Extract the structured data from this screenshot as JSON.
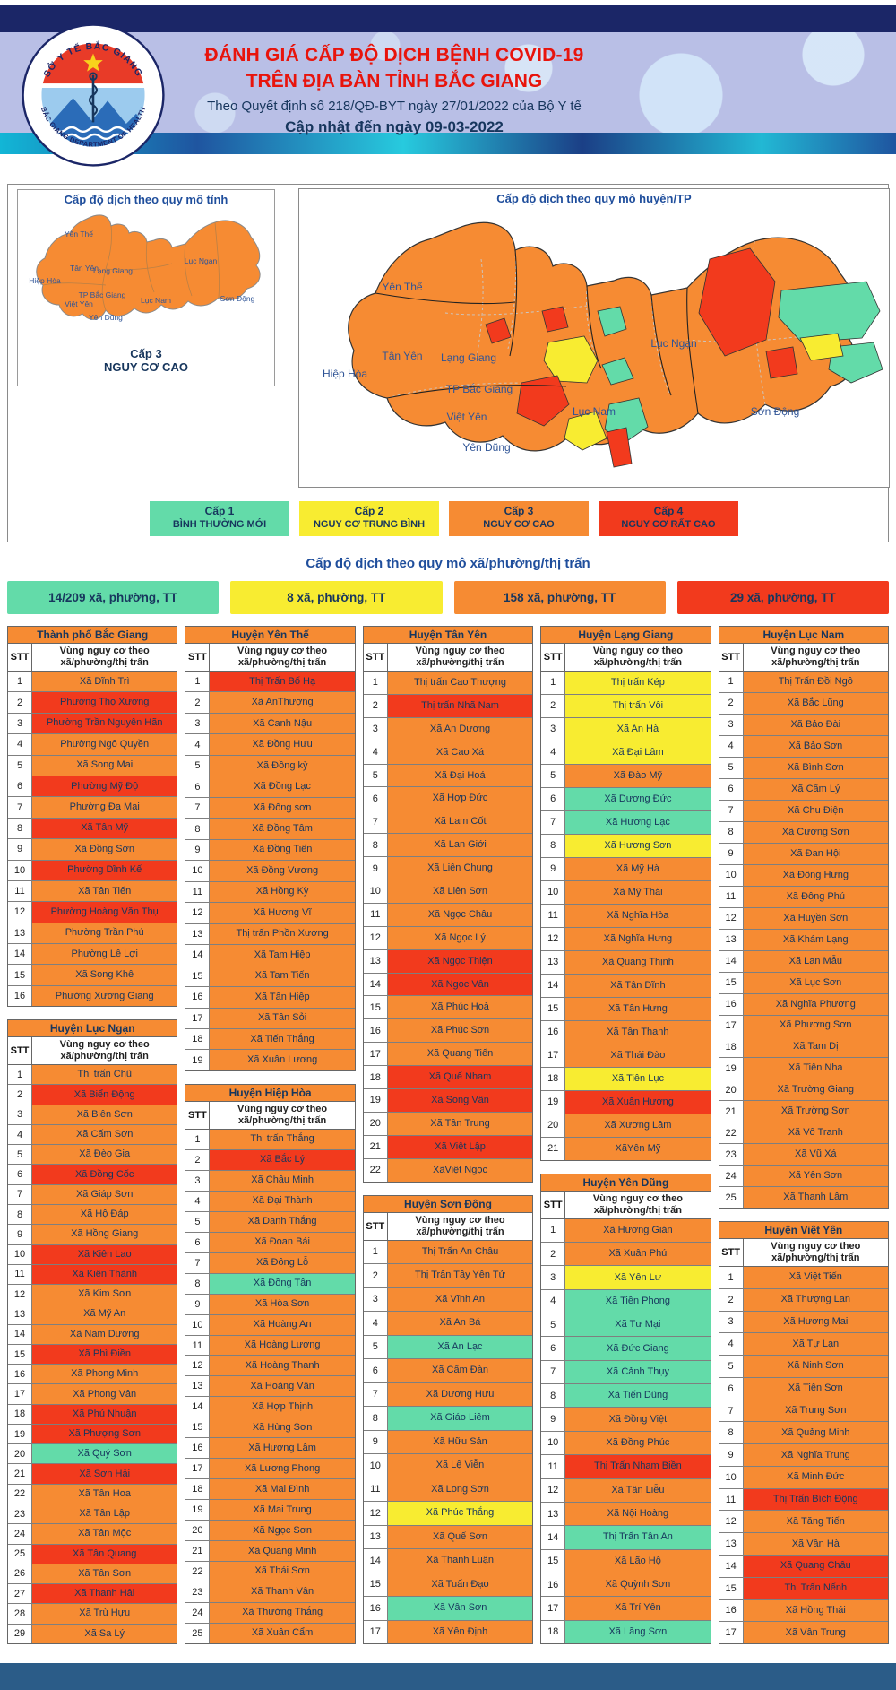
{
  "header": {
    "title1": "ĐÁNH GIÁ CẤP ĐỘ DỊCH BỆNH COVID-19",
    "title2": "TRÊN ĐỊA BÀN TỈNH BẮC GIANG",
    "subtitle": "Theo Quyết định số 218/QĐ-BYT ngày 27/01/2022 của Bộ Y tế",
    "updated": "Cập nhật đến ngày 09-03-2022",
    "logo_ring_top": "SỞ Y TẾ BẮC GIANG",
    "logo_ring_bottom": "BẮC GIANG DEPARTMENT OF HEALTH"
  },
  "maps": {
    "province": {
      "title": "Cấp độ dịch theo quy mô tỉnh",
      "caption_line1": "Cấp 3",
      "caption_line2": "NGUY CƠ CAO",
      "labels": [
        "Yên Thế",
        "Tân Yên",
        "Lạng Giang",
        "Lục Ngạn",
        "Hiệp Hòa",
        "TP Bắc Giang",
        "Việt Yên",
        "Lục Nam",
        "Sơn Động",
        "Yên Dũng"
      ]
    },
    "district": {
      "title": "Cấp độ dịch theo quy mô huyện/TP",
      "labels": [
        "Yên Thế",
        "Tân Yên",
        "Lạng Giang",
        "Lục Ngạn",
        "Hiệp Hòa",
        "TP Bắc Giang",
        "Việt Yên",
        "Lục Nam",
        "Sơn Động",
        "Yên Dũng"
      ]
    }
  },
  "legend": {
    "levels": [
      {
        "name": "Cấp 1",
        "desc": "BÌNH THƯỜNG MỚI",
        "level": 1
      },
      {
        "name": "Cấp 2",
        "desc": "NGUY CƠ TRUNG BÌNH",
        "level": 2
      },
      {
        "name": "Cấp 3",
        "desc": "NGUY CƠ CAO",
        "level": 3
      },
      {
        "name": "Cấp 4",
        "desc": "NGUY CƠ RẤT CAO",
        "level": 4
      }
    ]
  },
  "level_colors": {
    "1": "#63DBA9",
    "2": "#F8EC31",
    "3": "#F68B33",
    "4": "#F23A1D"
  },
  "commune_section": {
    "title": "Cấp độ dịch theo quy mô xã/phường/thị trấn",
    "summary": [
      {
        "text": "14/209 xã, phường, TT",
        "level": 1
      },
      {
        "text": "8 xã, phường, TT",
        "level": 2
      },
      {
        "text": "158 xã, phường, TT",
        "level": 3
      },
      {
        "text": "29 xã, phường, TT",
        "level": 4
      }
    ]
  },
  "table_headers": {
    "stt": "STT",
    "risk": "Vùng nguy cơ theo xã/phường/thị trấn"
  },
  "columns": [
    [
      {
        "name": "Thành phố Bắc Giang",
        "rows": [
          [
            "Xã Dĩnh Trì",
            3
          ],
          [
            "Phường Thọ Xương",
            4
          ],
          [
            "Phường Trần Nguyên Hãn",
            4
          ],
          [
            "Phường Ngô Quyền",
            3
          ],
          [
            "Xã Song Mai",
            3
          ],
          [
            "Phường Mỹ Độ",
            4
          ],
          [
            "Phường Đa Mai",
            3
          ],
          [
            "Xã Tân Mỹ",
            4
          ],
          [
            "Xã Đồng Sơn",
            3
          ],
          [
            "Phường Dĩnh Kế",
            4
          ],
          [
            "Xã Tân Tiến",
            3
          ],
          [
            "Phường Hoàng Văn Thụ",
            4
          ],
          [
            "Phường Trần Phú",
            3
          ],
          [
            "Phường Lê Lợi",
            3
          ],
          [
            "Xã Song Khê",
            3
          ],
          [
            "Phường Xương Giang",
            3
          ]
        ]
      },
      {
        "name": "Huyện Lục Ngạn",
        "rows": [
          [
            "Thị trấn Chũ",
            3
          ],
          [
            "Xã Biển Động",
            4
          ],
          [
            "Xã Biên Sơn",
            3
          ],
          [
            "Xã Cấm Sơn",
            3
          ],
          [
            "Xã Đèo Gia",
            3
          ],
          [
            "Xã Đồng Cốc",
            4
          ],
          [
            "Xã Giáp Sơn",
            3
          ],
          [
            "Xã Hộ Đáp",
            3
          ],
          [
            "Xã Hồng Giang",
            3
          ],
          [
            "Xã Kiên Lao",
            4
          ],
          [
            "Xã Kiên Thành",
            4
          ],
          [
            "Xã Kim Sơn",
            3
          ],
          [
            "Xã Mỹ An",
            3
          ],
          [
            "Xã Nam Dương",
            3
          ],
          [
            "Xã Phì Điền",
            4
          ],
          [
            "Xã Phong Minh",
            3
          ],
          [
            "Xã Phong Vân",
            3
          ],
          [
            "Xã Phú Nhuận",
            4
          ],
          [
            "Xã Phượng Sơn",
            4
          ],
          [
            "Xã Quý Sơn",
            1
          ],
          [
            "Xã Sơn Hải",
            4
          ],
          [
            "Xã Tân Hoa",
            3
          ],
          [
            "Xã Tân Lập",
            3
          ],
          [
            "Xã Tân Mộc",
            3
          ],
          [
            "Xã Tân Quang",
            4
          ],
          [
            "Xã Tân Sơn",
            3
          ],
          [
            "Xã Thanh Hải",
            4
          ],
          [
            "Xã Trù Hựu",
            3
          ],
          [
            "Xã Sa Lý",
            3
          ]
        ]
      }
    ],
    [
      {
        "name": "Huyện Yên Thế",
        "rows": [
          [
            "Thị Trấn Bố Hạ",
            4
          ],
          [
            "Xã AnThượng",
            3
          ],
          [
            "Xã Canh Nậu",
            3
          ],
          [
            "Xã Đồng Hưu",
            3
          ],
          [
            "Xã Đồng kỳ",
            3
          ],
          [
            "Xã Đồng Lạc",
            3
          ],
          [
            "Xã Đông sơn",
            3
          ],
          [
            "Xã Đồng Tâm",
            3
          ],
          [
            "Xã Đồng Tiến",
            3
          ],
          [
            "Xã Đồng Vương",
            3
          ],
          [
            "Xã Hồng Kỳ",
            3
          ],
          [
            "Xã Hương Vĩ",
            3
          ],
          [
            "Thị trấn Phồn Xương",
            3
          ],
          [
            "Xã Tam Hiệp",
            3
          ],
          [
            "Xã Tam Tiến",
            3
          ],
          [
            "Xã Tân Hiệp",
            3
          ],
          [
            "Xã Tân Sỏi",
            3
          ],
          [
            "Xã Tiến Thắng",
            3
          ],
          [
            "Xã Xuân Lương",
            3
          ]
        ]
      },
      {
        "name": "Huyện Hiệp Hòa",
        "rows": [
          [
            "Thị trấn Thắng",
            3
          ],
          [
            "Xã Bắc Lý",
            4
          ],
          [
            "Xã Châu Minh",
            3
          ],
          [
            "Xã Đại Thành",
            3
          ],
          [
            "Xã Danh Thắng",
            3
          ],
          [
            "Xã Đoan Bái",
            3
          ],
          [
            "Xã Đông Lỗ",
            3
          ],
          [
            "Xã Đồng Tân",
            1
          ],
          [
            "Xã Hòa Sơn",
            3
          ],
          [
            "Xã Hoàng An",
            3
          ],
          [
            "Xã Hoàng Lương",
            3
          ],
          [
            "Xã Hoàng Thanh",
            3
          ],
          [
            "Xã Hoàng Vân",
            3
          ],
          [
            "Xã Hợp Thịnh",
            3
          ],
          [
            "Xã Hùng Sơn",
            3
          ],
          [
            "Xã Hương Lâm",
            3
          ],
          [
            "Xã Lương Phong",
            3
          ],
          [
            "Xã Mai Đình",
            3
          ],
          [
            "Xã Mai Trung",
            3
          ],
          [
            "Xã Ngọc Sơn",
            3
          ],
          [
            "Xã Quang Minh",
            3
          ],
          [
            "Xã Thái Sơn",
            3
          ],
          [
            "Xã Thanh Vân",
            3
          ],
          [
            "Xã Thường Thắng",
            3
          ],
          [
            "Xã Xuân Cẩm",
            3
          ]
        ]
      }
    ],
    [
      {
        "name": "Huyện Tân Yên",
        "rows": [
          [
            "Thị trấn Cao Thượng",
            3
          ],
          [
            "Thị trấn Nhã Nam",
            4
          ],
          [
            "Xã An Dương",
            3
          ],
          [
            "Xã Cao Xá",
            3
          ],
          [
            "Xã Đại Hoá",
            3
          ],
          [
            "Xã Hợp Đức",
            3
          ],
          [
            "Xã Lam Cốt",
            3
          ],
          [
            "Xã Lan Giới",
            3
          ],
          [
            "Xã Liên Chung",
            3
          ],
          [
            "Xã Liên Sơn",
            3
          ],
          [
            "Xã Ngọc Châu",
            3
          ],
          [
            "Xã Ngọc Lý",
            3
          ],
          [
            "Xã Ngọc Thiện",
            4
          ],
          [
            "Xã Ngọc Vân",
            4
          ],
          [
            "Xã Phúc Hoà",
            3
          ],
          [
            "Xã Phúc Sơn",
            3
          ],
          [
            "Xã Quang Tiến",
            3
          ],
          [
            "Xã Quế Nham",
            4
          ],
          [
            "Xã Song Vân",
            4
          ],
          [
            "Xã Tân Trung",
            3
          ],
          [
            "Xã Việt Lập",
            4
          ],
          [
            "XãViệt Ngọc",
            3
          ]
        ]
      },
      {
        "name": "Huyện Sơn Động",
        "rows": [
          [
            "Thị Trấn An Châu",
            3
          ],
          [
            "Thị Trấn Tây Yên Tử",
            3
          ],
          [
            "Xã Vĩnh An",
            3
          ],
          [
            "Xã An Bá",
            3
          ],
          [
            "Xã An Lạc",
            1
          ],
          [
            "Xã Cẩm Đàn",
            3
          ],
          [
            "Xã Dương Hưu",
            3
          ],
          [
            "Xã Giáo Liêm",
            1
          ],
          [
            "Xã Hữu Sản",
            3
          ],
          [
            "Xã Lệ Viễn",
            3
          ],
          [
            "Xã Long Sơn",
            3
          ],
          [
            "Xã Phúc Thắng",
            2
          ],
          [
            "Xã Quế Sơn",
            3
          ],
          [
            "Xã Thanh Luận",
            3
          ],
          [
            "Xã Tuấn Đạo",
            3
          ],
          [
            "Xã Vân Sơn",
            1
          ],
          [
            "Xã Yên Định",
            3
          ]
        ]
      }
    ],
    [
      {
        "name": "Huyện Lạng Giang",
        "rows": [
          [
            "Thị trấn Kép",
            2
          ],
          [
            "Thị trấn Vôi",
            2
          ],
          [
            "Xã An Hà",
            2
          ],
          [
            "Xã Đại Lâm",
            2
          ],
          [
            "Xã Đào Mỹ",
            3
          ],
          [
            "Xã Dương Đức",
            1
          ],
          [
            "Xã Hương Lạc",
            1
          ],
          [
            "Xã Hương Sơn",
            2
          ],
          [
            "Xã Mỹ Hà",
            3
          ],
          [
            "Xã Mỹ Thái",
            3
          ],
          [
            "Xã Nghĩa Hòa",
            3
          ],
          [
            "Xã Nghĩa Hưng",
            3
          ],
          [
            "Xã Quang Thịnh",
            3
          ],
          [
            "Xã Tân Dĩnh",
            3
          ],
          [
            "Xã Tân Hưng",
            3
          ],
          [
            "Xã Tân Thanh",
            3
          ],
          [
            "Xã Thái Đào",
            3
          ],
          [
            "Xã Tiên Lục",
            2
          ],
          [
            "Xã Xuân Hương",
            4
          ],
          [
            "Xã Xương Lâm",
            3
          ],
          [
            "XãYên Mỹ",
            3
          ]
        ]
      },
      {
        "name": "Huyện Yên Dũng",
        "rows": [
          [
            "Xã Hương Gián",
            3
          ],
          [
            "Xã Xuân Phú",
            3
          ],
          [
            "Xã Yên Lư",
            2
          ],
          [
            "Xã Tiền Phong",
            1
          ],
          [
            "Xã Tư Mại",
            1
          ],
          [
            "Xã Đức Giang",
            1
          ],
          [
            "Xã Cảnh Thụy",
            1
          ],
          [
            "Xã Tiến Dũng",
            1
          ],
          [
            "Xã Đồng Việt",
            3
          ],
          [
            "Xã Đồng Phúc",
            3
          ],
          [
            "Thị Trấn Nham Biền",
            4
          ],
          [
            "Xã Tân Liễu",
            3
          ],
          [
            "Xã Nội Hoàng",
            3
          ],
          [
            "Thị Trấn Tân An",
            1
          ],
          [
            "Xã Lão Hộ",
            3
          ],
          [
            "Xã Quỳnh Sơn",
            3
          ],
          [
            "Xã Trí Yên",
            3
          ],
          [
            "Xã Lãng Sơn",
            1
          ]
        ]
      }
    ],
    [
      {
        "name": "Huyện Lục Nam",
        "rows": [
          [
            "Thị Trấn Đồi Ngô",
            3
          ],
          [
            "Xã Bắc Lũng",
            3
          ],
          [
            "Xã Bảo Đài",
            3
          ],
          [
            "Xã Bảo Sơn",
            3
          ],
          [
            "Xã Bình Sơn",
            3
          ],
          [
            "Xã Cẩm Lý",
            3
          ],
          [
            "Xã Chu Điện",
            3
          ],
          [
            "Xã Cương Sơn",
            3
          ],
          [
            "Xã Đan Hội",
            3
          ],
          [
            "Xã Đông Hưng",
            3
          ],
          [
            "Xã Đông Phú",
            3
          ],
          [
            "Xã Huyền Sơn",
            3
          ],
          [
            "Xã Khám Lạng",
            3
          ],
          [
            "Xã Lan Mẫu",
            3
          ],
          [
            "Xã Lục Sơn",
            3
          ],
          [
            "Xã Nghĩa Phương",
            3
          ],
          [
            "Xã Phương Sơn",
            3
          ],
          [
            "Xã Tam Dị",
            3
          ],
          [
            "Xã Tiên Nha",
            3
          ],
          [
            "Xã Trường Giang",
            3
          ],
          [
            "Xã Trường Sơn",
            3
          ],
          [
            "Xã Vô Tranh",
            3
          ],
          [
            "Xã Vũ Xá",
            3
          ],
          [
            "Xã Yên Sơn",
            3
          ],
          [
            "Xã Thanh Lâm",
            3
          ]
        ]
      },
      {
        "name": "Huyện Việt Yên",
        "rows": [
          [
            "Xã Việt Tiến",
            3
          ],
          [
            "Xã Thượng Lan",
            3
          ],
          [
            "Xã Hương Mai",
            3
          ],
          [
            "Xã Tự Lạn",
            3
          ],
          [
            "Xã Ninh Sơn",
            3
          ],
          [
            "Xã Tiên Sơn",
            3
          ],
          [
            "Xã Trung Sơn",
            3
          ],
          [
            "Xã Quảng Minh",
            3
          ],
          [
            "Xã Nghĩa Trung",
            3
          ],
          [
            "Xã Minh Đức",
            3
          ],
          [
            "Thị Trấn Bích Động",
            4
          ],
          [
            "Xã Tăng Tiến",
            3
          ],
          [
            "Xã Vân Hà",
            3
          ],
          [
            "Xã Quang Châu",
            4
          ],
          [
            "Thị Trấn Nếnh",
            4
          ],
          [
            "Xã Hồng Thái",
            3
          ],
          [
            "Xã Vân Trung",
            3
          ]
        ]
      }
    ]
  ]
}
